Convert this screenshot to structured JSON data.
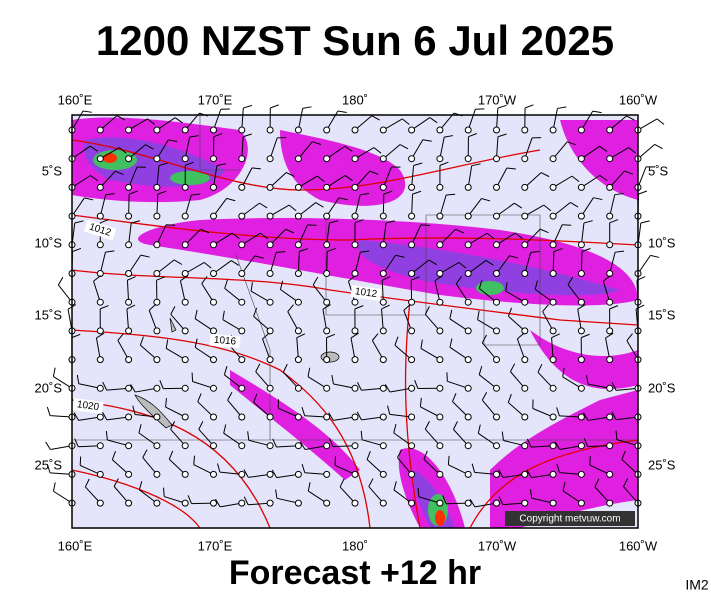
{
  "header": {
    "title": "1200 NZST Sun 6 Jul 2025"
  },
  "map": {
    "lon_labels": [
      "160˚E",
      "170˚E",
      "180˚",
      "170˚W",
      "160˚W"
    ],
    "lat_labels": [
      "5˚S",
      "10˚S",
      "15˚S",
      "20˚S",
      "25˚S"
    ],
    "isobar_labels": [
      "1012",
      "1012",
      "1016",
      "1020"
    ],
    "copyright": "Copyright metvuw.com"
  },
  "footer": {
    "forecast": "Forecast +12 hr",
    "code": "IM2"
  }
}
